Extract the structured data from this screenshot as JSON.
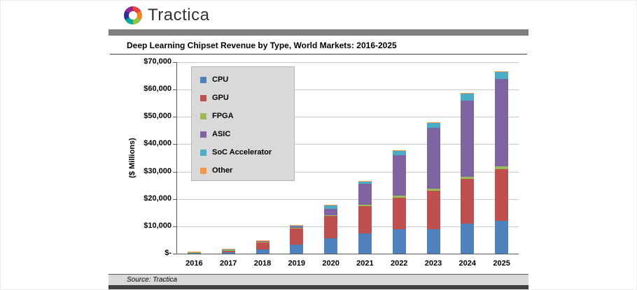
{
  "header": {
    "brand": "Tractica",
    "logo_colors": [
      "#e8423c",
      "#f5821f",
      "#8cc63f",
      "#00a99d",
      "#2e3192",
      "#92278f"
    ]
  },
  "footer": {
    "source": "Source: Tractica"
  },
  "chart_data": {
    "type": "bar",
    "stacked": true,
    "title": "Deep Learning Chipset Revenue by Type, World Markets: 2016-2025",
    "xlabel": "",
    "ylabel": "($ Millions)",
    "ylim": [
      0,
      70000
    ],
    "ytick_step": 10000,
    "ytick_labels": [
      "$-",
      "$10,000",
      "$20,000",
      "$30,000",
      "$40,000",
      "$50,000",
      "$60,000",
      "$70,000"
    ],
    "grid": true,
    "legend_position": "upper-left",
    "categories": [
      "2016",
      "2017",
      "2018",
      "2019",
      "2020",
      "2021",
      "2022",
      "2023",
      "2024",
      "2025"
    ],
    "series": [
      {
        "name": "CPU",
        "color": "#4F81BD",
        "values": [
          150,
          400,
          1500,
          3300,
          5500,
          7500,
          9000,
          9000,
          11000,
          12000
        ]
      },
      {
        "name": "GPU",
        "color": "#C0504D",
        "values": [
          350,
          800,
          2600,
          5900,
          8200,
          10000,
          11500,
          14000,
          16300,
          19000
        ]
      },
      {
        "name": "FPGA",
        "color": "#9BBB59",
        "values": [
          20,
          60,
          120,
          250,
          350,
          450,
          600,
          700,
          900,
          1000
        ]
      },
      {
        "name": "ASIC",
        "color": "#8064A2",
        "values": [
          80,
          200,
          350,
          600,
          2400,
          7500,
          15000,
          22300,
          27800,
          32000
        ]
      },
      {
        "name": "SoC Accelerator",
        "color": "#4BACC6",
        "values": [
          50,
          90,
          180,
          350,
          1300,
          1000,
          1500,
          1900,
          2500,
          2400
        ]
      },
      {
        "name": "Other",
        "color": "#F79646",
        "values": [
          10,
          20,
          40,
          80,
          100,
          100,
          150,
          150,
          200,
          200
        ]
      }
    ]
  }
}
